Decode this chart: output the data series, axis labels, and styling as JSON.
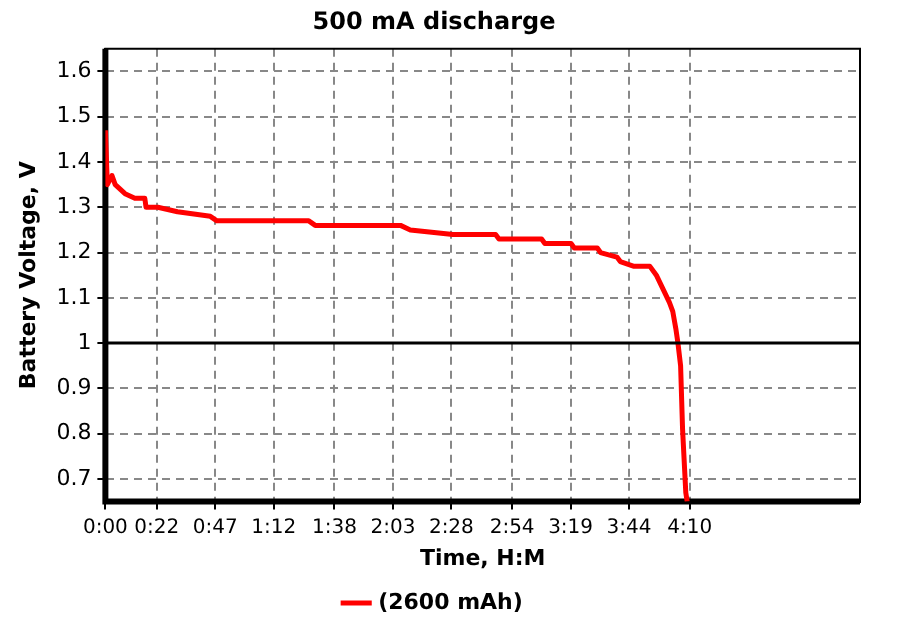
{
  "chart_data": {
    "type": "line",
    "title": "500 mA discharge",
    "xlabel": "Time, H:M",
    "ylabel": "Battery Voltage, V",
    "x": [
      0,
      0.014,
      0.047,
      0.07,
      0.14,
      0.21,
      0.281,
      0.29,
      0.374,
      0.514,
      0.748,
      0.795,
      1.45,
      1.496,
      2.104,
      2.174,
      2.478,
      2.782,
      2.806,
      3.11,
      3.133,
      3.32,
      3.343,
      3.507,
      3.53,
      3.647,
      3.671,
      3.764,
      3.881,
      3.928,
      3.975,
      4.021,
      4.045,
      4.068,
      4.082,
      4.101,
      4.115,
      4.138,
      4.148
    ],
    "series": [
      {
        "name": "(2600 mAh)",
        "color": "#ff0000",
        "values": [
          1.47,
          1.35,
          1.37,
          1.35,
          1.33,
          1.32,
          1.32,
          1.3,
          1.3,
          1.29,
          1.28,
          1.27,
          1.27,
          1.26,
          1.26,
          1.25,
          1.24,
          1.24,
          1.23,
          1.23,
          1.22,
          1.22,
          1.21,
          1.21,
          1.2,
          1.19,
          1.18,
          1.17,
          1.17,
          1.15,
          1.12,
          1.09,
          1.07,
          1.03,
          1.0,
          0.95,
          0.81,
          0.67,
          0.65
        ]
      }
    ],
    "xlim": [
      0,
      5.38
    ],
    "ylim": [
      0.65,
      1.65
    ],
    "xticks": [
      {
        "value": 0,
        "label": "0:00"
      },
      {
        "value": 0.3667,
        "label": "0:22"
      },
      {
        "value": 0.7833,
        "label": "0:47"
      },
      {
        "value": 1.2,
        "label": "1:12"
      },
      {
        "value": 1.6333,
        "label": "1:38"
      },
      {
        "value": 2.05,
        "label": "2:03"
      },
      {
        "value": 2.4667,
        "label": "2:28"
      },
      {
        "value": 2.9,
        "label": "2:54"
      },
      {
        "value": 3.3167,
        "label": "3:19"
      },
      {
        "value": 3.7333,
        "label": "3:44"
      },
      {
        "value": 4.1667,
        "label": "4:10"
      }
    ],
    "yticks": [
      0.7,
      0.8,
      0.9,
      1,
      1.1,
      1.2,
      1.3,
      1.4,
      1.5,
      1.6
    ],
    "ref_lines": [
      {
        "axis": "y",
        "value": 1,
        "color": "#000000"
      }
    ],
    "grid": true,
    "legend": "bottom",
    "marker": "none",
    "line_style": "solid"
  }
}
